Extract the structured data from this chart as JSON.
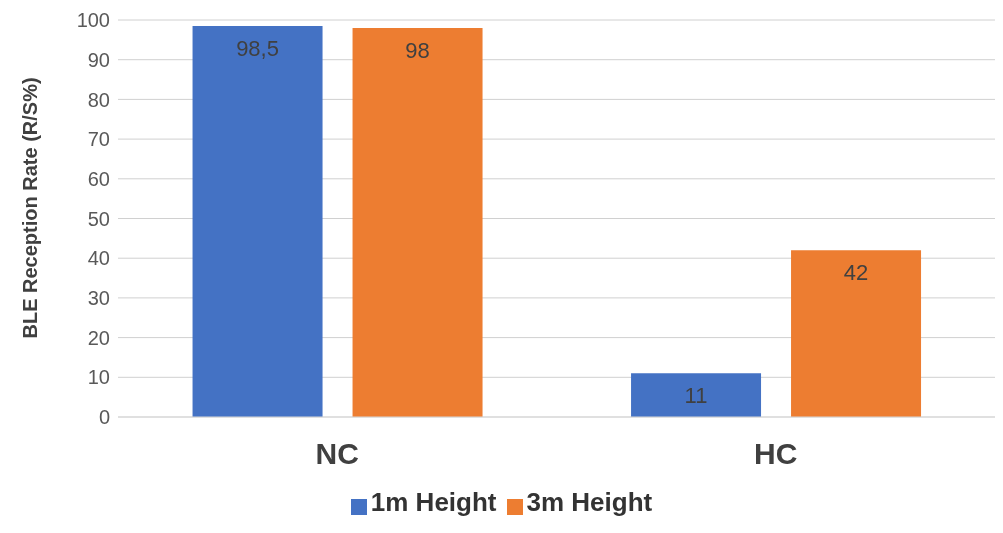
{
  "chart_data": {
    "type": "bar",
    "categories": [
      "NC",
      "HC"
    ],
    "ylabel": "BLE Reception Rate (R/S%)",
    "ylim": [
      0,
      100
    ],
    "yticks": [
      0,
      10,
      20,
      30,
      40,
      50,
      60,
      70,
      80,
      90,
      100
    ],
    "grid": "y",
    "legend": "bottom",
    "series": [
      {
        "name": "1m Height",
        "color": "#4472c4",
        "values": [
          98.5,
          11
        ],
        "value_labels": [
          "98,5",
          "11"
        ]
      },
      {
        "name": "3m Height",
        "color": "#ed7d31",
        "values": [
          98,
          42
        ],
        "value_labels": [
          "98",
          "42"
        ]
      }
    ]
  }
}
